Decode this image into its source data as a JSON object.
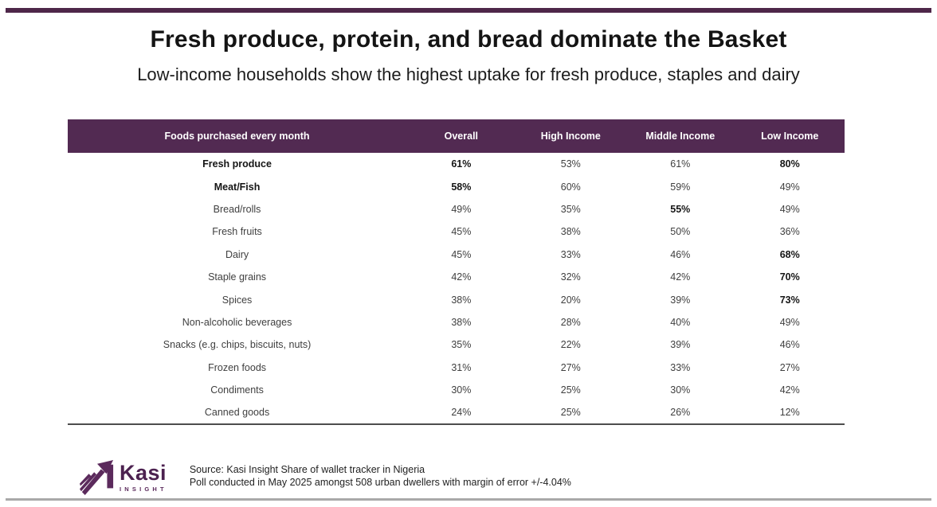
{
  "page": {
    "title": "Fresh produce, protein, and bread dominate the Basket",
    "subtitle": "Low-income households show the highest uptake for fresh produce, staples and dairy"
  },
  "colors": {
    "accent_purple": "#522a52",
    "top_rule_purple": "#4e2749",
    "logo_purple": "#4c2250",
    "table_bottom_rule": "#4d4d4d",
    "bottom_rule_gray": "#a9a9a9"
  },
  "chart_data": {
    "type": "table",
    "title": "Fresh produce, protein, and bread dominate the Basket",
    "subtitle": "Low-income households show the highest uptake for fresh produce, staples and dairy",
    "columns": [
      "Foods purchased every month",
      "Overall",
      "High Income",
      "Middle Income",
      "Low Income"
    ],
    "rows": [
      {
        "label": "Fresh produce",
        "values": [
          "61%",
          "53%",
          "61%",
          "80%"
        ],
        "bold": [
          true,
          true,
          false,
          false,
          true
        ]
      },
      {
        "label": "Meat/Fish",
        "values": [
          "58%",
          "60%",
          "59%",
          "49%"
        ],
        "bold": [
          true,
          true,
          false,
          false,
          false
        ]
      },
      {
        "label": "Bread/rolls",
        "values": [
          "49%",
          "35%",
          "55%",
          "49%"
        ],
        "bold": [
          false,
          false,
          false,
          true,
          false
        ]
      },
      {
        "label": "Fresh fruits",
        "values": [
          "45%",
          "38%",
          "50%",
          "36%"
        ],
        "bold": [
          false,
          false,
          false,
          false,
          false
        ]
      },
      {
        "label": "Dairy",
        "values": [
          "45%",
          "33%",
          "46%",
          "68%"
        ],
        "bold": [
          false,
          false,
          false,
          false,
          true
        ]
      },
      {
        "label": "Staple grains",
        "values": [
          "42%",
          "32%",
          "42%",
          "70%"
        ],
        "bold": [
          false,
          false,
          false,
          false,
          true
        ]
      },
      {
        "label": "Spices",
        "values": [
          "38%",
          "20%",
          "39%",
          "73%"
        ],
        "bold": [
          false,
          false,
          false,
          false,
          true
        ]
      },
      {
        "label": "Non-alcoholic beverages",
        "values": [
          "38%",
          "28%",
          "40%",
          "49%"
        ],
        "bold": [
          false,
          false,
          false,
          false,
          false
        ]
      },
      {
        "label": "Snacks (e.g. chips, biscuits, nuts)",
        "values": [
          "35%",
          "22%",
          "39%",
          "46%"
        ],
        "bold": [
          false,
          false,
          false,
          false,
          false
        ]
      },
      {
        "label": "Frozen foods",
        "values": [
          "31%",
          "27%",
          "33%",
          "27%"
        ],
        "bold": [
          false,
          false,
          false,
          false,
          false
        ]
      },
      {
        "label": "Condiments",
        "values": [
          "30%",
          "25%",
          "30%",
          "42%"
        ],
        "bold": [
          false,
          false,
          false,
          false,
          false
        ]
      },
      {
        "label": "Canned goods",
        "values": [
          "24%",
          "25%",
          "26%",
          "12%"
        ],
        "bold": [
          false,
          false,
          false,
          false,
          false
        ]
      }
    ]
  },
  "footer": {
    "logo_word": "Kasi",
    "logo_sub": "INSIGHT",
    "source_line1": "Source: Kasi Insight Share of wallet tracker in Nigeria",
    "source_line2": "Poll conducted in May 2025 amongst 508 urban dwellers with margin of error +/-4.04%"
  }
}
